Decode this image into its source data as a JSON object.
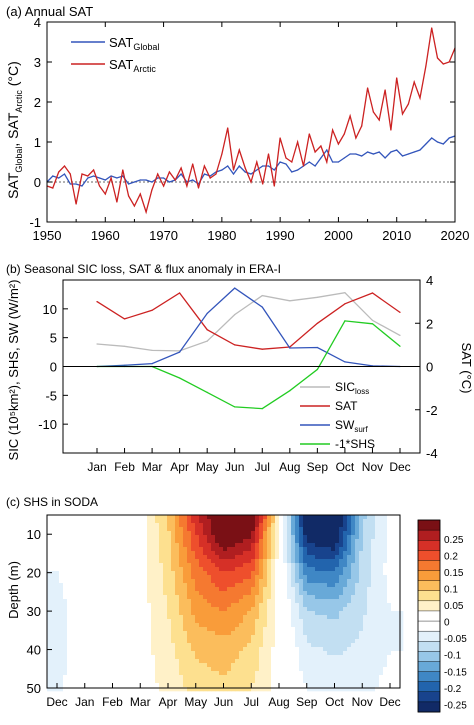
{
  "chart_data": [
    {
      "type": "line",
      "title": "(a) Annual SAT",
      "xlabel": "",
      "ylabel": {
        "base1": "SAT",
        "sub1": "Global",
        "sep": ", SAT",
        "sub2": "Arctic",
        "unit": " (°C)"
      },
      "xlim": [
        1950,
        2020
      ],
      "ylim": [
        -1,
        4
      ],
      "xticks": [
        1950,
        1960,
        1970,
        1980,
        1990,
        2000,
        2010,
        2020
      ],
      "yticks": [
        -1,
        0,
        1,
        2,
        3,
        4
      ],
      "zero_line": "dashed",
      "legend_position": "top-left",
      "series": [
        {
          "name_base": "SAT",
          "name_sub": "Global",
          "color": "#3355bb",
          "x": [
            1950,
            1951,
            1952,
            1953,
            1954,
            1955,
            1956,
            1957,
            1958,
            1959,
            1960,
            1961,
            1962,
            1963,
            1964,
            1965,
            1966,
            1967,
            1968,
            1969,
            1970,
            1971,
            1972,
            1973,
            1974,
            1975,
            1976,
            1977,
            1978,
            1979,
            1980,
            1981,
            1982,
            1983,
            1984,
            1985,
            1986,
            1987,
            1988,
            1989,
            1990,
            1991,
            1992,
            1993,
            1994,
            1995,
            1996,
            1997,
            1998,
            1999,
            2000,
            2001,
            2002,
            2003,
            2004,
            2005,
            2006,
            2007,
            2008,
            2009,
            2010,
            2011,
            2012,
            2013,
            2014,
            2015,
            2016,
            2017,
            2018,
            2019,
            2020
          ],
          "values": [
            0.0,
            0.15,
            0.1,
            0.2,
            -0.05,
            -0.05,
            -0.1,
            0.1,
            0.15,
            0.1,
            0.05,
            0.15,
            0.1,
            0.15,
            -0.05,
            0.0,
            0.05,
            0.05,
            0.0,
            0.1,
            0.1,
            0.0,
            0.05,
            0.2,
            0.0,
            0.05,
            -0.05,
            0.2,
            0.15,
            0.25,
            0.3,
            0.4,
            0.2,
            0.4,
            0.25,
            0.2,
            0.3,
            0.4,
            0.4,
            0.3,
            0.5,
            0.45,
            0.25,
            0.3,
            0.4,
            0.5,
            0.4,
            0.6,
            0.8,
            0.5,
            0.5,
            0.6,
            0.7,
            0.7,
            0.65,
            0.75,
            0.7,
            0.75,
            0.6,
            0.75,
            0.8,
            0.65,
            0.7,
            0.75,
            0.8,
            0.95,
            1.1,
            1.0,
            0.95,
            1.1,
            1.15
          ]
        },
        {
          "name_base": "SAT",
          "name_sub": "Arctic",
          "color": "#cc2222",
          "x": [
            1950,
            1951,
            1952,
            1953,
            1954,
            1955,
            1956,
            1957,
            1958,
            1959,
            1960,
            1961,
            1962,
            1963,
            1964,
            1965,
            1966,
            1967,
            1968,
            1969,
            1970,
            1971,
            1972,
            1973,
            1974,
            1975,
            1976,
            1977,
            1978,
            1979,
            1980,
            1981,
            1982,
            1983,
            1984,
            1985,
            1986,
            1987,
            1988,
            1989,
            1990,
            1991,
            1992,
            1993,
            1994,
            1995,
            1996,
            1997,
            1998,
            1999,
            2000,
            2001,
            2002,
            2003,
            2004,
            2005,
            2006,
            2007,
            2008,
            2009,
            2010,
            2011,
            2012,
            2013,
            2014,
            2015,
            2016,
            2017,
            2018,
            2019,
            2020
          ],
          "values": [
            -0.1,
            -0.15,
            0.25,
            0.4,
            0.2,
            -0.55,
            0.2,
            0.15,
            0.3,
            -0.1,
            -0.3,
            0.1,
            -0.5,
            0.3,
            -0.35,
            -0.6,
            -0.3,
            -0.75,
            -0.2,
            0.2,
            -0.1,
            0.25,
            0.05,
            0.35,
            -0.1,
            0.45,
            -0.15,
            0.4,
            0.1,
            0.2,
            0.7,
            1.35,
            0.3,
            0.8,
            0.35,
            0.0,
            0.5,
            -0.05,
            0.7,
            -0.1,
            1.1,
            0.6,
            0.5,
            1.0,
            0.4,
            1.2,
            0.75,
            0.9,
            0.5,
            1.3,
            0.95,
            1.2,
            1.65,
            1.1,
            1.4,
            2.35,
            1.75,
            1.55,
            2.3,
            1.3,
            2.6,
            1.7,
            1.95,
            2.5,
            2.1,
            2.9,
            3.85,
            3.1,
            2.95,
            3.0,
            3.35
          ]
        }
      ]
    },
    {
      "type": "line",
      "title": "(b) Seasonal SIC loss, SAT & flux anomaly in ERA-I",
      "ylabel_left": "SIC (10⁵km²), SHS, SW (W/m²)",
      "ylabel_right": "SAT (°C)",
      "categories": [
        "Jan",
        "Feb",
        "Mar",
        "Apr",
        "May",
        "Jun",
        "Jul",
        "Aug",
        "Sep",
        "Oct",
        "Nov",
        "Dec"
      ],
      "ylim_left": [
        -15,
        15
      ],
      "yticks_left": [
        -10,
        -5,
        0,
        5,
        10
      ],
      "ylim_right": [
        -4,
        4
      ],
      "yticks_right": [
        -4,
        -2,
        0,
        2,
        4
      ],
      "zero_line": "solid",
      "legend_position": "bottom-right",
      "series": [
        {
          "name_base": "SIC",
          "name_sub": "loss",
          "color": "#bbbbbb",
          "axis": "left",
          "values": [
            3.9,
            3.5,
            2.8,
            2.7,
            4.4,
            9.0,
            12.3,
            11.4,
            12.0,
            12.8,
            8.0,
            5.4
          ]
        },
        {
          "name_base": "SAT",
          "name_sub": "",
          "color": "#cc2222",
          "axis": "right",
          "values": [
            3.0,
            2.2,
            2.6,
            3.4,
            1.7,
            1.0,
            0.8,
            0.9,
            2.0,
            2.9,
            3.4,
            2.5
          ]
        },
        {
          "name_base": "SW",
          "name_sub": "surf",
          "color": "#3355bb",
          "axis": "left",
          "values": [
            0.0,
            0.2,
            0.5,
            2.5,
            9.2,
            13.6,
            10.3,
            3.2,
            3.3,
            0.8,
            0.1,
            0.0
          ]
        },
        {
          "name_base": "-1*SHS",
          "name_sub": "",
          "color": "#22cc22",
          "axis": "left",
          "values": [
            0.0,
            0.0,
            0.0,
            -2.0,
            -4.5,
            -7.0,
            -7.3,
            -4.2,
            -0.5,
            7.9,
            7.4,
            3.5
          ]
        }
      ]
    },
    {
      "type": "heatmap",
      "title": "(c) SHS in SODA",
      "xlabel": "",
      "ylabel": "Depth (m)",
      "x_categories": [
        "Dec",
        "Jan",
        "Feb",
        "Mar",
        "Apr",
        "May",
        "Jun",
        "Jul",
        "Aug",
        "Sep",
        "Oct",
        "Nov",
        "Dec"
      ],
      "ylim": [
        50,
        5
      ],
      "yticks": [
        10,
        20,
        30,
        40,
        50
      ],
      "depths": [
        5,
        10,
        20,
        30,
        40,
        50
      ],
      "colorbar_ticks": [
        "0.25",
        "0.2",
        "0.15",
        "0.1",
        "0.05",
        "0",
        "-0.05",
        "-0.1",
        "-0.15",
        "-0.2",
        "-0.25"
      ],
      "colorbar_colors": [
        "#7a1015",
        "#b01e20",
        "#d63027",
        "#ee4f2c",
        "#f57930",
        "#f99c3a",
        "#fbbd5c",
        "#fde08f",
        "#fff1c8",
        "#ffffff",
        "#ffffff",
        "#e3f1fb",
        "#c2dff2",
        "#97c7e8",
        "#68a9d8",
        "#3f87c5",
        "#2264ad",
        "#18438d",
        "#112a66"
      ],
      "grid": [
        [
          -0.03,
          -0.02,
          0.0,
          0.0,
          0.07,
          0.19,
          0.27,
          0.28,
          0.02,
          -0.27,
          -0.27,
          -0.1,
          -0.03
        ],
        [
          -0.03,
          -0.02,
          0.0,
          0.0,
          0.06,
          0.17,
          0.26,
          0.23,
          0.0,
          -0.24,
          -0.26,
          -0.09,
          -0.03
        ],
        [
          -0.04,
          -0.02,
          0.0,
          0.0,
          0.05,
          0.13,
          0.17,
          0.15,
          0.0,
          -0.16,
          -0.17,
          -0.08,
          -0.03
        ],
        [
          -0.05,
          -0.02,
          0.0,
          0.0,
          0.04,
          0.1,
          0.12,
          0.09,
          0.0,
          -0.09,
          -0.1,
          -0.07,
          -0.04
        ],
        [
          -0.05,
          -0.02,
          0.0,
          0.0,
          0.03,
          0.07,
          0.08,
          0.06,
          0.0,
          -0.06,
          -0.07,
          -0.06,
          -0.04
        ],
        [
          -0.05,
          -0.01,
          0.0,
          0.0,
          0.02,
          0.05,
          0.06,
          0.04,
          0.0,
          -0.04,
          -0.05,
          -0.05,
          -0.03
        ]
      ]
    }
  ]
}
